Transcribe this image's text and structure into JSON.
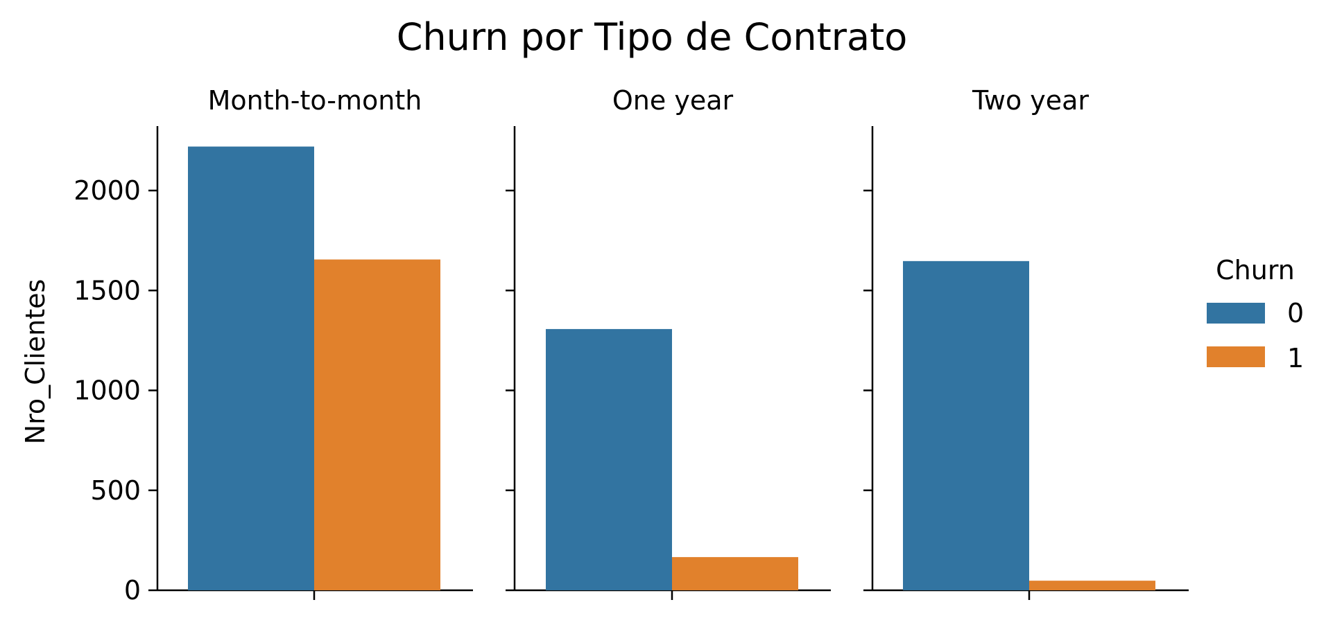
{
  "chart_data": {
    "type": "bar",
    "title": "Churn por Tipo de Contrato",
    "ylabel": "Nro_Clientes",
    "xlabel": "",
    "ylim": [
      0,
      2320
    ],
    "yticks": [
      0,
      500,
      1000,
      1500,
      2000
    ],
    "facets": [
      "Month-to-month",
      "One year",
      "Two year"
    ],
    "legend": {
      "title": "Churn",
      "placement": "right"
    },
    "series": [
      {
        "name": "0",
        "color": "#3274a1",
        "values": [
          2220,
          1307,
          1647
        ]
      },
      {
        "name": "1",
        "color": "#e1812c",
        "values": [
          1655,
          166,
          48
        ]
      }
    ]
  }
}
